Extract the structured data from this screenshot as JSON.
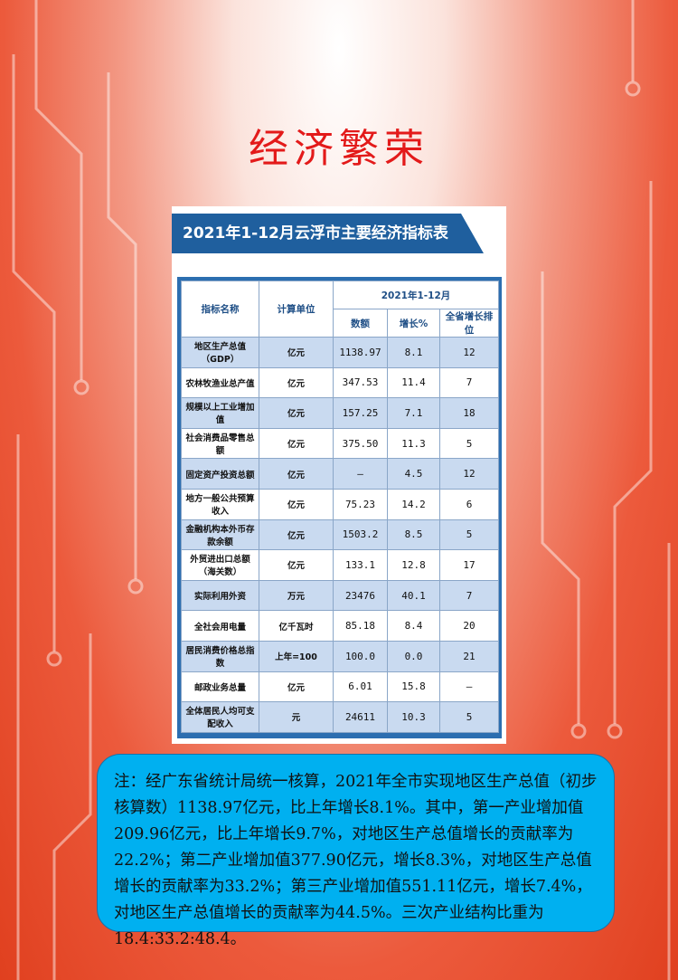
{
  "title": "经济繁荣",
  "table_title": "2021年1-12月云浮市主要经济指标表",
  "table": {
    "headers": {
      "indicator": "指标名称",
      "unit": "计算单位",
      "period": "2021年1-12月",
      "amount": "数额",
      "growth": "增长%",
      "rank": "全省增长排位"
    },
    "rows": [
      [
        "地区生产总值（GDP）",
        "亿元",
        "1138.97",
        "8.1",
        "12"
      ],
      [
        "农林牧渔业总产值",
        "亿元",
        "347.53",
        "11.4",
        "7"
      ],
      [
        "规模以上工业增加值",
        "亿元",
        "157.25",
        "7.1",
        "18"
      ],
      [
        "社会消费品零售总额",
        "亿元",
        "375.50",
        "11.3",
        "5"
      ],
      [
        "固定资产投资总额",
        "亿元",
        "—",
        "4.5",
        "12"
      ],
      [
        "地方一般公共预算收入",
        "亿元",
        "75.23",
        "14.2",
        "6"
      ],
      [
        "金融机构本外币存款余额",
        "亿元",
        "1503.2",
        "8.5",
        "5"
      ],
      [
        "外贸进出口总额（海关数）",
        "亿元",
        "133.1",
        "12.8",
        "17"
      ],
      [
        "实际利用外资",
        "万元",
        "23476",
        "40.1",
        "7"
      ],
      [
        "全社会用电量",
        "亿千瓦时",
        "85.18",
        "8.4",
        "20"
      ],
      [
        "居民消费价格总指数",
        "上年=100",
        "100.0",
        "0.0",
        "21"
      ],
      [
        "邮政业务总量",
        "亿元",
        "6.01",
        "15.8",
        "—"
      ],
      [
        "全体居民人均可支配收入",
        "元",
        "24611",
        "10.3",
        "5"
      ]
    ]
  },
  "note": "注：经广东省统计局统一核算，2021年全市实现地区生产总值（初步核算数）1138.97亿元，比上年增长8.1%。其中，第一产业增加值209.96亿元，比上年增长9.7%，对地区生产总值增长的贡献率为22.2%；第二产业增加值377.90亿元，增长8.3%，对地区生产总值增长的贡献率为33.2%；第三产业增加值551.11亿元，增长7.4%，对地区生产总值增长的贡献率为44.5%。三次产业结构比重为18.4:33.2:48.4。"
}
